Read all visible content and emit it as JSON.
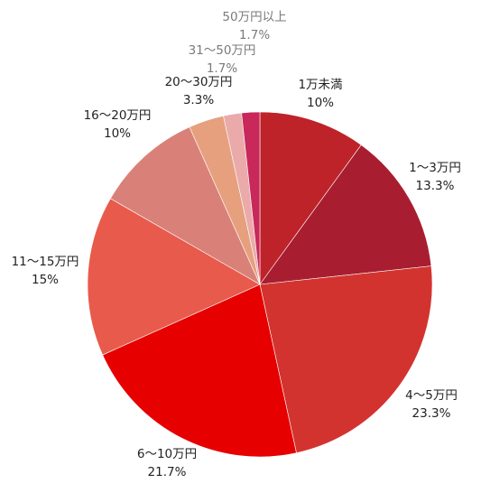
{
  "chart_data": {
    "type": "pie",
    "title": "",
    "start_angle_deg": 0,
    "direction": "clockwise",
    "slices": [
      {
        "name": "1万未満",
        "value": 10,
        "label": "10%",
        "color": "#BE2329"
      },
      {
        "name": "1〜3万円",
        "value": 13.3,
        "label": "13.3%",
        "color": "#A81E30"
      },
      {
        "name": "4〜5万円",
        "value": 23.3,
        "label": "23.3%",
        "color": "#D3332F"
      },
      {
        "name": "6〜10万円",
        "value": 21.7,
        "label": "21.7%",
        "color": "#E60000"
      },
      {
        "name": "11〜15万円",
        "value": 15,
        "label": "15%",
        "color": "#E85A4C"
      },
      {
        "name": "16〜20万円",
        "value": 10,
        "label": "10%",
        "color": "#D98178"
      },
      {
        "name": "20〜30万円",
        "value": 3.3,
        "label": "3.3%",
        "color": "#E6A07E"
      },
      {
        "name": "31〜50万円",
        "value": 1.7,
        "label": "1.7%",
        "color": "#EBAAAA"
      },
      {
        "name": "50万円以上",
        "value": 1.7,
        "label": "1.7%",
        "color": "#C8285A"
      }
    ]
  }
}
